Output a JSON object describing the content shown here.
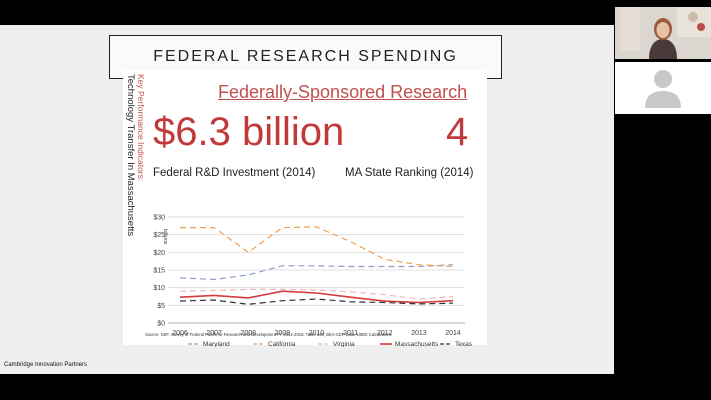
{
  "slide": {
    "title": "FEDERAL RESEARCH SPENDING",
    "side_label_primary": "Key Performance Indicators:",
    "side_label_secondary": "Technology Transfer In Massachusetts",
    "header": "Federally-Sponsored Research",
    "big_amount": "$6.3 billion",
    "big_rank": "4",
    "amount_label": "Federal R&D Investment (2014)",
    "rank_label": "MA State Ranking (2014)",
    "y_axis_unit": "billions",
    "source": "Source: NSF, Survey of Federal Funds for Research and Development FY 2014-2016, Table 140; BEA GDP Data; UMDI Calculations",
    "footer": "Cambridge Innovation Partners"
  },
  "chart_data": {
    "type": "line",
    "x": [
      "2006",
      "2007",
      "2008",
      "2009",
      "2010",
      "2011",
      "2012",
      "2013",
      "2014"
    ],
    "y_ticks": [
      "$0",
      "$5",
      "$10",
      "$15",
      "$20",
      "$25",
      "$30"
    ],
    "ylim": [
      0,
      30
    ],
    "grid": true,
    "legend_position": "bottom",
    "series": [
      {
        "name": "Maryland",
        "color": "#8e9fc7",
        "dash": "6,4",
        "values": [
          12.8,
          12.3,
          13.6,
          16.2,
          16.2,
          16.0,
          16.0,
          16.0,
          16.5
        ]
      },
      {
        "name": "California",
        "color": "#f0a050",
        "dash": "6,4",
        "values": [
          27.0,
          27.0,
          20.0,
          27.0,
          27.2,
          23.0,
          18.0,
          16.5,
          16.0
        ]
      },
      {
        "name": "Virginia",
        "color": "#f0b8b8",
        "dash": "6,4",
        "values": [
          9.0,
          9.2,
          9.5,
          9.5,
          9.3,
          8.8,
          8.0,
          6.8,
          7.5
        ]
      },
      {
        "name": "Massachusetts",
        "color": "#d63b3b",
        "dash": "",
        "values": [
          7.3,
          7.8,
          7.1,
          9.0,
          8.5,
          7.3,
          6.2,
          5.8,
          6.3
        ]
      },
      {
        "name": "Texas",
        "color": "#333333",
        "dash": "6,4",
        "values": [
          6.2,
          6.5,
          5.3,
          6.3,
          6.8,
          6.0,
          5.8,
          5.4,
          5.6
        ]
      }
    ]
  },
  "video": {
    "speaker_colors": {
      "hair": "#9c5a3c",
      "skin": "#e8c2a8",
      "shirt": "#4a3b3b",
      "wall": "#dcd6d0"
    },
    "placeholder_bg": "#ffffff",
    "placeholder_avatar": "#c8c8c8"
  }
}
